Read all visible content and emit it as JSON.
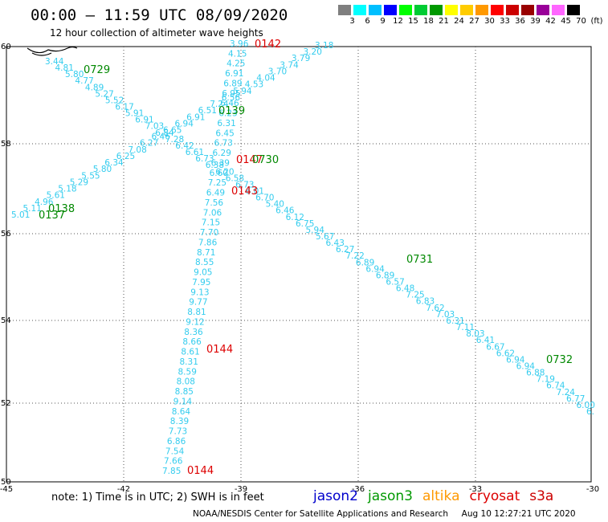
{
  "header": {
    "title": "00:00 – 11:59 UTC 08/09/2020",
    "subtitle": "12 hour collection of altimeter wave heights"
  },
  "colorbar": {
    "unit": "(ft)",
    "labels": [
      "3",
      "6",
      "9",
      "12",
      "15",
      "18",
      "21",
      "24",
      "27",
      "30",
      "33",
      "36",
      "39",
      "42",
      "45",
      "70"
    ],
    "colors": [
      "#7f7f7f",
      "#00ffff",
      "#00bfff",
      "#0000ff",
      "#00ff00",
      "#00cc33",
      "#009900",
      "#ffff00",
      "#ffcc00",
      "#ff9900",
      "#ff0000",
      "#cc0000",
      "#990000",
      "#990099",
      "#ff66ff",
      "#000000"
    ]
  },
  "axes": {
    "lon_ticks": [
      "-45",
      "-42",
      "-39",
      "-36",
      "-33",
      "-30"
    ],
    "lat_ticks": [
      "60",
      "58",
      "56",
      "54",
      "52",
      "50"
    ]
  },
  "track_labels": [
    {
      "text": "0142",
      "color": "#dd0000"
    },
    {
      "text": "0729",
      "color": "#008800"
    },
    {
      "text": "0139",
      "color": "#008800"
    },
    {
      "text": "0147",
      "color": "#dd0000"
    },
    {
      "text": "0730",
      "color": "#008800"
    },
    {
      "text": "0143",
      "color": "#dd0000"
    },
    {
      "text": "0138",
      "color": "#008800"
    },
    {
      "text": "0137",
      "color": "#008800"
    },
    {
      "text": "0731",
      "color": "#008800"
    },
    {
      "text": "0144",
      "color": "#dd0000"
    },
    {
      "text": "0732",
      "color": "#008800"
    },
    {
      "text": "0144",
      "color": "#dd0000"
    }
  ],
  "tracks": {
    "sw_ne": [
      "5.01",
      "5.11",
      "4.96",
      "5.61",
      "5.18",
      "5.29",
      "5.55",
      "5.80",
      "6.34",
      "6.25",
      "7.08",
      "6.27",
      "6.46",
      "6.65",
      "6.94",
      "6.91",
      "6.51",
      "7.24",
      "6.56",
      "5.94",
      "4.53",
      "4.04",
      "3.70",
      "3.74",
      "3.79",
      "3.20",
      "3.18"
    ],
    "nw_se": [
      "3.44",
      "4.81",
      "5.80",
      "4.77",
      "4.89",
      "5.27",
      "5.52",
      "6.17",
      "5.91",
      "6.91",
      "7.03",
      "6.84",
      "7.28",
      "6.42",
      "6.61",
      "6.73",
      "6.38",
      "6.20",
      "6.58",
      "6.73",
      "6.01",
      "6.70",
      "5.40",
      "6.46",
      "6.12",
      "6.75",
      "5.94",
      "5.67",
      "6.43",
      "6.27",
      "7.22",
      "6.89",
      "6.94",
      "6.89",
      "6.57",
      "6.48",
      "7.25",
      "6.83",
      "7.62",
      "7.03",
      "6.31",
      "7.11",
      "8.03",
      "6.41",
      "6.67",
      "6.62",
      "6.94",
      "6.94",
      "6.88",
      "7.19",
      "6.74",
      "7.24",
      "6.77",
      "6.00",
      "6."
    ],
    "north_south_a": [
      "3.96",
      "4.15",
      "4.25",
      "6.91",
      "6.89",
      "6.95",
      "6.46",
      "6.23",
      "6.31",
      "6.45",
      "6.73",
      "6.29",
      "6.39",
      "6.60",
      "7.25",
      "6.49",
      "7.56",
      "7.06",
      "7.15",
      "7.70",
      "7.86",
      "8.71",
      "8.55",
      "9.05",
      "7.95",
      "9.13",
      "9.77",
      "8.81",
      "9.12",
      "8.36",
      "8.66",
      "8.61",
      "8.31",
      "8.59",
      "8.08",
      "8.85",
      "9.14",
      "8.64",
      "8.39",
      "7.73",
      "6.86",
      "7.54",
      "7.66",
      "7.85"
    ]
  },
  "note": "note:  1) Time is in UTC;  2) SWH is in feet",
  "legend": [
    {
      "name": "jason2",
      "color": "#0000cc"
    },
    {
      "name": "jason3",
      "color": "#009900"
    },
    {
      "name": "altika",
      "color": "#ff9900"
    },
    {
      "name": "cryosat",
      "color": "#dd0000"
    },
    {
      "name": "s3a",
      "color": "#cc0000"
    }
  ],
  "footer": "NOAA/NESDIS Center for Satellite Applications and Research     Aug 10 12:27:21 UTC 2020"
}
